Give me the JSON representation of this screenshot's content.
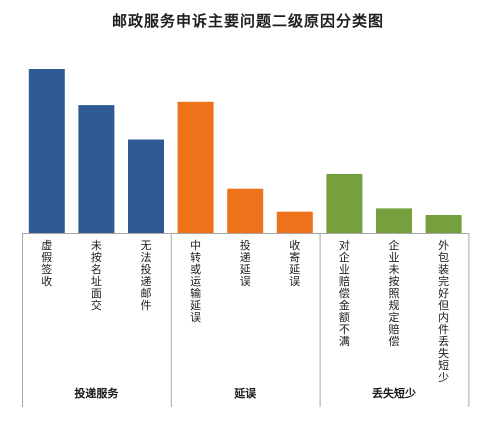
{
  "chart_data": {
    "type": "bar",
    "title": "邮政服务申诉主要问题二级原因分类图",
    "categories": [
      "虚假签收",
      "未按名址面交",
      "无法投递邮件",
      "中转或运输延误",
      "投递延误",
      "收寄延误",
      "对企业赔偿金额不满",
      "企业未按照规定赔偿",
      "外包装完好但内件丢失短少"
    ],
    "groups": [
      {
        "name": "投递服务",
        "categories": [
          "虚假签收",
          "未按名址面交",
          "无法投递邮件"
        ],
        "color": "#2f5b94"
      },
      {
        "name": "延误",
        "categories": [
          "中转或运输延误",
          "投递延误",
          "收寄延误"
        ],
        "color": "#ee7219"
      },
      {
        "name": "丢失短少",
        "categories": [
          "对企业赔偿金额不满",
          "企业未按照规定赔偿",
          "外包装完好但内件丢失短少"
        ],
        "color": "#76a03d"
      }
    ],
    "values": [
      100,
      78,
      57,
      80,
      27,
      13,
      36,
      15,
      11
    ],
    "ylim": [
      0,
      100
    ],
    "grid": false,
    "legend": "none"
  }
}
